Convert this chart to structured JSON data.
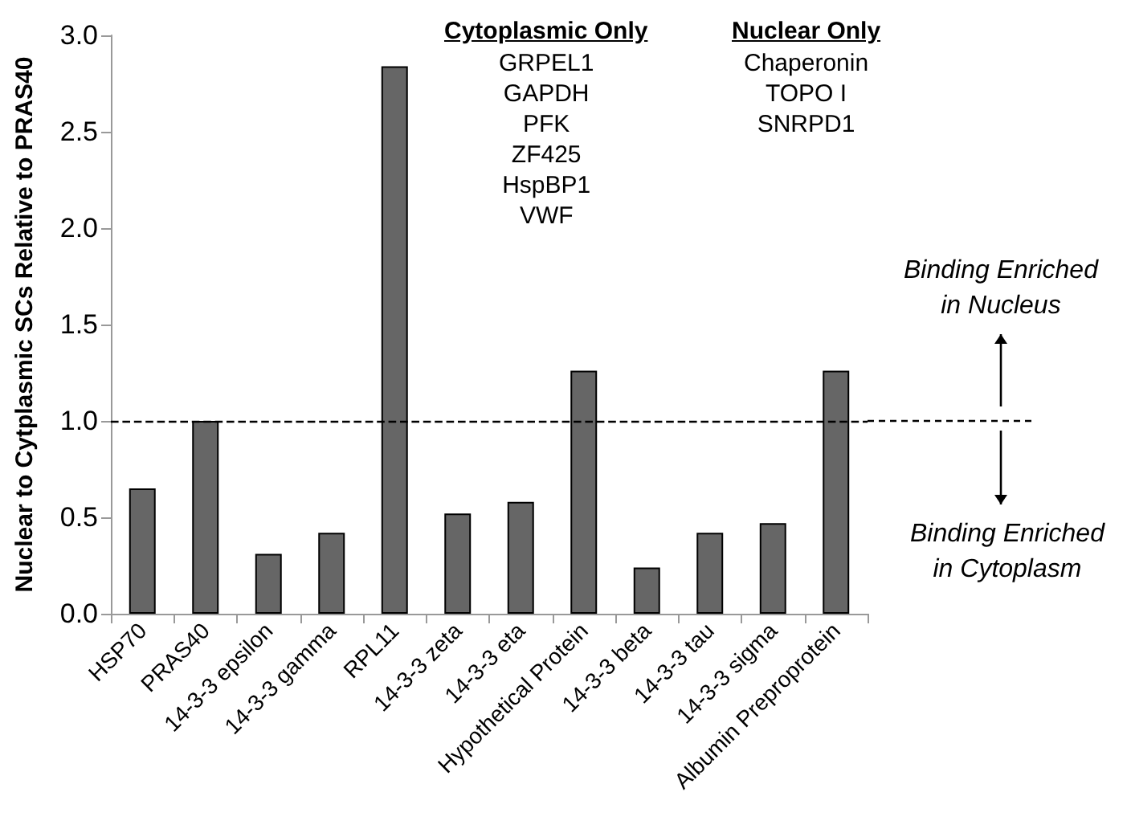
{
  "chart_data": {
    "type": "bar",
    "ylabel": "Nuclear to Cytplasmic SCs Relative to PRAS40",
    "categories": [
      "HSP70",
      "PRAS40",
      "14-3-3 epsilon",
      "14-3-3 gamma",
      "RPL11",
      "14-3-3 zeta",
      "14-3-3 eta",
      "Hypothetical Protein",
      "14-3-3 beta",
      "14-3-3 tau",
      "14-3-3 sigma",
      "Albumin Preproprotein"
    ],
    "values": [
      0.65,
      1.0,
      0.31,
      0.42,
      2.84,
      0.52,
      0.58,
      1.26,
      0.24,
      0.42,
      0.47,
      1.26
    ],
    "color": "#666666",
    "ylim": [
      0,
      3
    ],
    "yticks": [
      {
        "value": 0,
        "label": "0.0"
      },
      {
        "value": 0.5,
        "label": "0.5"
      },
      {
        "value": 1,
        "label": "1.0"
      },
      {
        "value": 1.5,
        "label": "1.5"
      },
      {
        "value": 2,
        "label": "2.0"
      },
      {
        "value": 2.5,
        "label": "2.5"
      },
      {
        "value": 3,
        "label": "3.0"
      }
    ],
    "grid": false,
    "ref_lines": [
      {
        "axis": "y",
        "value": 1,
        "label": null,
        "line_style": "dashed",
        "color": "#000000"
      }
    ],
    "annotations": [
      "Cytoplasmic Only",
      "GRPEL1\nGAPDH\nPFK\nZF425\nHspBP1\nVWF",
      "Nuclear Only",
      "Chaperonin\nTOPO I\nSNRPD1",
      "Binding Enriched\nin Nucleus",
      "Binding Enriched\nin Cytoplasm"
    ]
  }
}
